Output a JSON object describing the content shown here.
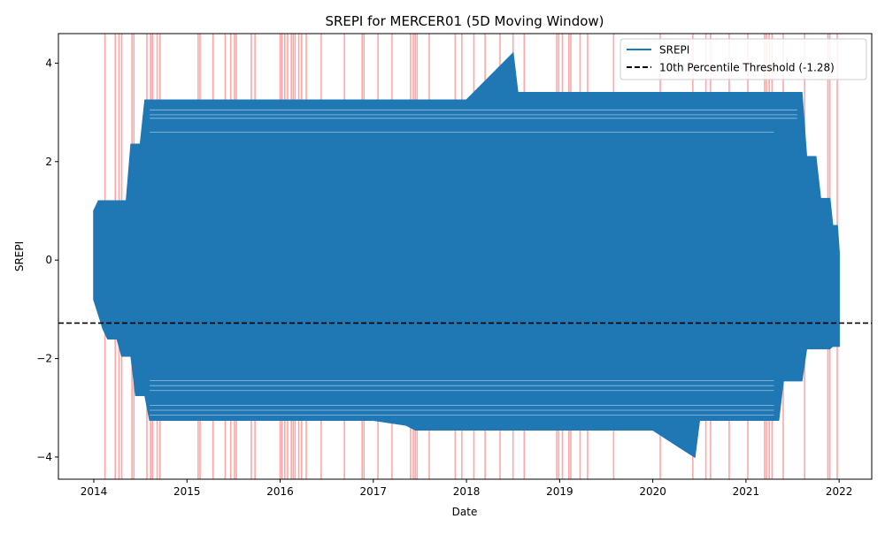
{
  "chart_data": {
    "type": "line",
    "title": "SREPI for MERCER01 (5D Moving Window)",
    "xlabel": "Date",
    "ylabel": "SREPI",
    "xlim": [
      2013.62,
      2022.35
    ],
    "ylim": [
      -4.45,
      4.6
    ],
    "x_ticks": [
      2014,
      2015,
      2016,
      2017,
      2018,
      2019,
      2020,
      2021,
      2022
    ],
    "y_ticks": [
      4,
      2,
      0,
      -2,
      -4
    ],
    "y_tick_labels": [
      "4",
      "2",
      "0",
      "−2",
      "−4"
    ],
    "grid": false,
    "legend_position": "top-right",
    "colors": {
      "series": "#1f77b4",
      "threshold": "#000000",
      "drought_band": "#ff0000"
    },
    "threshold": {
      "name": "10th Percentile Threshold (-1.28)",
      "value": -1.28,
      "style": "dashed"
    },
    "series": [
      {
        "name": "SREPI",
        "envelope": [
          {
            "x": 2014.0,
            "min": -0.8,
            "max": 1.0
          },
          {
            "x": 2014.05,
            "min": -1.1,
            "max": 1.2
          },
          {
            "x": 2014.1,
            "min": -1.4,
            "max": 1.2
          },
          {
            "x": 2014.15,
            "min": -1.6,
            "max": 1.2
          },
          {
            "x": 2014.25,
            "min": -1.6,
            "max": 1.2
          },
          {
            "x": 2014.3,
            "min": -1.95,
            "max": 1.2
          },
          {
            "x": 2014.35,
            "min": -1.95,
            "max": 1.2
          },
          {
            "x": 2014.4,
            "min": -1.95,
            "max": 2.35
          },
          {
            "x": 2014.45,
            "min": -2.75,
            "max": 2.35
          },
          {
            "x": 2014.5,
            "min": -2.75,
            "max": 2.35
          },
          {
            "x": 2014.55,
            "min": -2.75,
            "max": 3.25
          },
          {
            "x": 2014.6,
            "min": -3.25,
            "max": 3.25
          },
          {
            "x": 2015.0,
            "min": -3.25,
            "max": 3.25
          },
          {
            "x": 2016.0,
            "min": -3.25,
            "max": 3.25
          },
          {
            "x": 2017.0,
            "min": -3.25,
            "max": 3.25
          },
          {
            "x": 2017.35,
            "min": -3.35,
            "max": 3.25
          },
          {
            "x": 2017.45,
            "min": -3.45,
            "max": 3.25
          },
          {
            "x": 2018.0,
            "min": -3.45,
            "max": 3.25
          },
          {
            "x": 2018.5,
            "min": -3.45,
            "max": 4.2
          },
          {
            "x": 2018.55,
            "min": -3.45,
            "max": 3.4
          },
          {
            "x": 2019.0,
            "min": -3.45,
            "max": 3.4
          },
          {
            "x": 2020.0,
            "min": -3.45,
            "max": 3.4
          },
          {
            "x": 2020.45,
            "min": -4.0,
            "max": 3.4
          },
          {
            "x": 2020.5,
            "min": -3.25,
            "max": 3.4
          },
          {
            "x": 2021.0,
            "min": -3.25,
            "max": 3.4
          },
          {
            "x": 2021.35,
            "min": -3.25,
            "max": 3.4
          },
          {
            "x": 2021.4,
            "min": -2.45,
            "max": 3.4
          },
          {
            "x": 2021.6,
            "min": -2.45,
            "max": 3.4
          },
          {
            "x": 2021.65,
            "min": -1.8,
            "max": 2.1
          },
          {
            "x": 2021.75,
            "min": -1.8,
            "max": 2.1
          },
          {
            "x": 2021.8,
            "min": -1.8,
            "max": 1.25
          },
          {
            "x": 2021.9,
            "min": -1.8,
            "max": 1.25
          },
          {
            "x": 2021.93,
            "min": -1.75,
            "max": 0.7
          },
          {
            "x": 2021.98,
            "min": -1.75,
            "max": 0.7
          },
          {
            "x": 2022.0,
            "min": -1.75,
            "max": 0.15
          }
        ]
      }
    ],
    "drought_periods": [
      2014.12,
      2014.23,
      2014.27,
      2014.3,
      2014.41,
      2014.43,
      2014.57,
      2014.61,
      2014.63,
      2014.68,
      2014.71,
      2015.12,
      2015.14,
      2015.28,
      2015.41,
      2015.47,
      2015.51,
      2015.53,
      2015.69,
      2015.73,
      2016.0,
      2016.02,
      2016.05,
      2016.08,
      2016.12,
      2016.14,
      2016.16,
      2016.2,
      2016.23,
      2016.28,
      2016.44,
      2016.69,
      2016.88,
      2016.9,
      2017.05,
      2017.2,
      2017.4,
      2017.43,
      2017.45,
      2017.47,
      2017.6,
      2017.88,
      2017.95,
      2018.08,
      2018.2,
      2018.36,
      2018.5,
      2018.62,
      2018.97,
      2018.99,
      2019.03,
      2019.1,
      2019.12,
      2019.22,
      2019.3,
      2019.58,
      2020.08,
      2020.43,
      2020.57,
      2020.62,
      2020.82,
      2021.02,
      2021.2,
      2021.22,
      2021.25,
      2021.28,
      2021.4,
      2021.63,
      2021.88,
      2021.9,
      2021.98
    ]
  }
}
